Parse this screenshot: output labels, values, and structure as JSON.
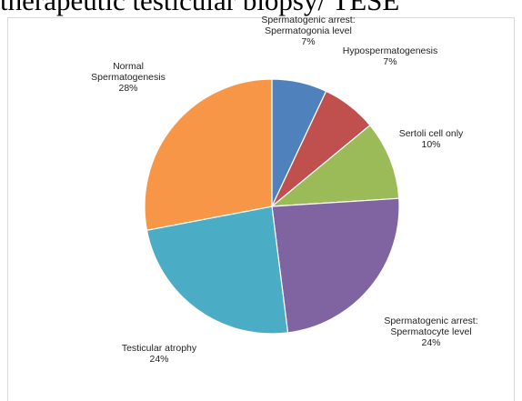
{
  "chart_data": {
    "type": "pie",
    "title": "therapeutic testicular biopsy/ TESE",
    "slices": [
      {
        "lines": [
          "Spermatogenic arrest:",
          "Spermatogonia level"
        ],
        "pct_label": "7%",
        "value": 7,
        "color": "#4f81bd"
      },
      {
        "lines": [
          "Hypospermatogenesis"
        ],
        "pct_label": "7%",
        "value": 7,
        "color": "#c0504d"
      },
      {
        "lines": [
          "Sertoli cell only"
        ],
        "pct_label": "10%",
        "value": 10,
        "color": "#9bbb59"
      },
      {
        "lines": [
          "Spermatogenic arrest:",
          "Spermatocyte level"
        ],
        "pct_label": "24%",
        "value": 24,
        "color": "#8064a2"
      },
      {
        "lines": [
          "Testicular atrophy"
        ],
        "pct_label": "24%",
        "value": 24,
        "color": "#4bacc6"
      },
      {
        "lines": [
          "Normal",
          "Spermatogenesis"
        ],
        "pct_label": "28%",
        "value": 28,
        "color": "#f79646"
      }
    ]
  }
}
